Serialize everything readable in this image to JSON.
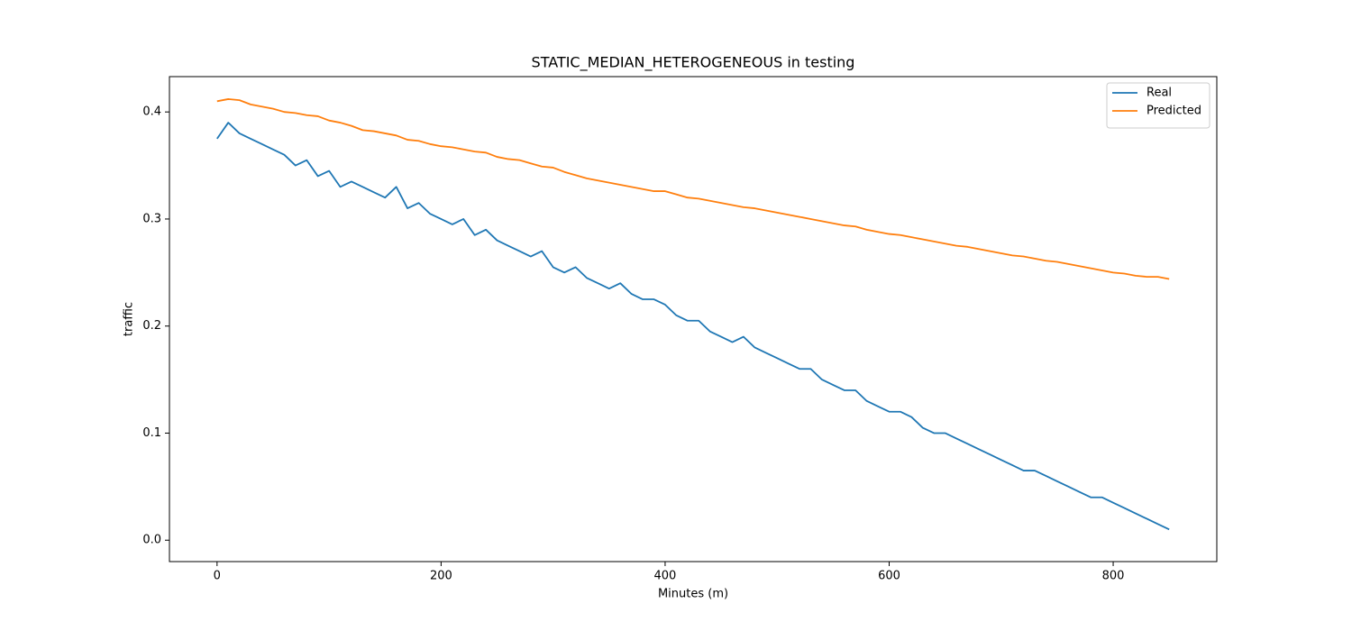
{
  "chart_data": {
    "type": "line",
    "title": "STATIC_MEDIAN_HETEROGENEOUS in testing",
    "x_label": "Minutes (m)",
    "y_label": "traffic",
    "x": [
      0,
      10,
      20,
      30,
      40,
      50,
      60,
      70,
      80,
      90,
      100,
      110,
      120,
      130,
      140,
      150,
      160,
      170,
      180,
      190,
      200,
      210,
      220,
      230,
      240,
      250,
      260,
      270,
      280,
      290,
      300,
      310,
      320,
      330,
      340,
      350,
      360,
      370,
      380,
      390,
      400,
      410,
      420,
      430,
      440,
      450,
      460,
      470,
      480,
      490,
      500,
      510,
      520,
      530,
      540,
      550,
      560,
      570,
      580,
      590,
      600,
      610,
      620,
      630,
      640,
      650,
      660,
      670,
      680,
      690,
      700,
      710,
      720,
      730,
      740,
      750,
      760,
      770,
      780,
      790,
      800,
      810,
      820,
      830,
      840,
      850
    ],
    "series": [
      {
        "name": "Real",
        "color": "#1f77b4",
        "values": [
          0.375,
          0.39,
          0.38,
          0.375,
          0.37,
          0.365,
          0.36,
          0.35,
          0.355,
          0.34,
          0.345,
          0.33,
          0.335,
          0.33,
          0.325,
          0.32,
          0.33,
          0.31,
          0.315,
          0.305,
          0.3,
          0.295,
          0.3,
          0.285,
          0.29,
          0.28,
          0.275,
          0.27,
          0.265,
          0.27,
          0.255,
          0.25,
          0.255,
          0.245,
          0.24,
          0.235,
          0.24,
          0.23,
          0.225,
          0.225,
          0.22,
          0.21,
          0.205,
          0.205,
          0.195,
          0.19,
          0.185,
          0.19,
          0.18,
          0.175,
          0.17,
          0.165,
          0.16,
          0.16,
          0.15,
          0.145,
          0.14,
          0.14,
          0.13,
          0.125,
          0.12,
          0.12,
          0.115,
          0.105,
          0.1,
          0.1,
          0.095,
          0.09,
          0.085,
          0.08,
          0.075,
          0.07,
          0.065,
          0.065,
          0.06,
          0.055,
          0.05,
          0.045,
          0.04,
          0.04,
          0.035,
          0.03,
          0.025,
          0.02,
          0.015,
          0.01
        ]
      },
      {
        "name": "Predicted",
        "color": "#ff7f0e",
        "values": [
          0.41,
          0.412,
          0.411,
          0.407,
          0.405,
          0.403,
          0.4,
          0.399,
          0.397,
          0.396,
          0.392,
          0.39,
          0.387,
          0.383,
          0.382,
          0.38,
          0.378,
          0.374,
          0.373,
          0.37,
          0.368,
          0.367,
          0.365,
          0.363,
          0.362,
          0.358,
          0.356,
          0.355,
          0.352,
          0.349,
          0.348,
          0.344,
          0.341,
          0.338,
          0.336,
          0.334,
          0.332,
          0.33,
          0.328,
          0.326,
          0.326,
          0.323,
          0.32,
          0.319,
          0.317,
          0.315,
          0.313,
          0.311,
          0.31,
          0.308,
          0.306,
          0.304,
          0.302,
          0.3,
          0.298,
          0.296,
          0.294,
          0.293,
          0.29,
          0.288,
          0.286,
          0.285,
          0.283,
          0.281,
          0.279,
          0.277,
          0.275,
          0.274,
          0.272,
          0.27,
          0.268,
          0.266,
          0.265,
          0.263,
          0.261,
          0.26,
          0.258,
          0.256,
          0.254,
          0.252,
          0.25,
          0.249,
          0.247,
          0.246,
          0.246,
          0.244
        ]
      }
    ],
    "xlim": [
      -42.5,
      892.5
    ],
    "xticks": [
      0,
      200,
      400,
      600,
      800
    ],
    "ylim": [
      -0.02,
      0.433
    ],
    "yticks": [
      {
        "value": 0,
        "label": "0.0"
      },
      0.1,
      0.2,
      0.3,
      0.4
    ],
    "legend": "upper right",
    "grid": false
  }
}
